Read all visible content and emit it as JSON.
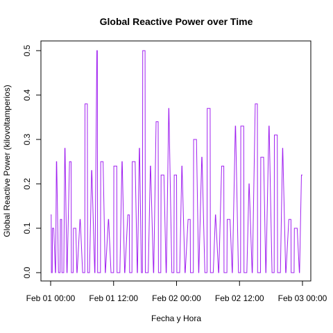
{
  "chart_data": {
    "type": "line",
    "title": "Global Reactive Power over Time",
    "xlabel": "Fecha y Hora",
    "ylabel": "Global Reactive Power (kilovoltamperios)",
    "x_ticks": [
      {
        "label": "Feb 01 00:00",
        "hours": 0
      },
      {
        "label": "Feb 01 12:00",
        "hours": 12
      },
      {
        "label": "Feb 02 00:00",
        "hours": 24
      },
      {
        "label": "Feb 02 12:00",
        "hours": 36
      },
      {
        "label": "Feb 03 00:00",
        "hours": 48
      }
    ],
    "y_ticks": [
      0.0,
      0.1,
      0.2,
      0.3,
      0.4,
      0.5
    ],
    "y_tick_labels": [
      "0.0",
      "0.1",
      "0.2",
      "0.3",
      "0.4",
      "0.5"
    ],
    "xlim_hours": [
      0,
      48
    ],
    "ylim": [
      0,
      0.5
    ],
    "grid": false,
    "legend": "none",
    "line_color": "#a020f0",
    "series": [
      {
        "hours": [
          0.0,
          0.1,
          0.15,
          0.3,
          0.35,
          0.6,
          0.9,
          0.95,
          1.1,
          1.15,
          1.5,
          1.8,
          1.85,
          2.1,
          2.15,
          2.5,
          2.7,
          2.75,
          3.1,
          3.15,
          3.6,
          3.9,
          3.95,
          4.3,
          4.35,
          4.8,
          5.0,
          5.05,
          5.6,
          5.65,
          6.1,
          6.5,
          6.55,
          7.0,
          7.05,
          7.4,
          7.8,
          7.85,
          8.4,
          8.45,
          8.8,
          8.9,
          8.95,
          9.5,
          9.55,
          10.0,
          10.4,
          10.45,
          11.0,
          11.05,
          11.5,
          12.0,
          12.05,
          12.6,
          12.65,
          13.2,
          13.6,
          13.65,
          14.1,
          14.15,
          14.7,
          15.0,
          15.05,
          15.5,
          15.55,
          16.1,
          16.5,
          16.55,
          16.9,
          16.95,
          17.3,
          17.5,
          17.55,
          18.0,
          18.05,
          18.6,
          19.0,
          19.05,
          19.6,
          19.65,
          20.1,
          20.5,
          20.55,
          21.0,
          21.05,
          21.6,
          22.0,
          22.05,
          22.5,
          22.55,
          23.1,
          23.5,
          23.55,
          24.0,
          24.05,
          24.6,
          25.0,
          25.05,
          25.6,
          25.65,
          26.2,
          26.6,
          26.65,
          27.2,
          27.25,
          27.8,
          28.2,
          28.25,
          28.8,
          28.85,
          29.4,
          29.8,
          29.85,
          30.4,
          30.45,
          31.0,
          31.4,
          31.45,
          32.0,
          32.05,
          32.6,
          33.0,
          33.05,
          33.6,
          33.65,
          34.2,
          34.6,
          34.65,
          35.2,
          35.25,
          35.8,
          36.2,
          36.25,
          36.8,
          36.85,
          37.4,
          37.8,
          37.85,
          38.4,
          38.45,
          39.0,
          39.4,
          39.45,
          40.0,
          40.05,
          40.6,
          41.0,
          41.05,
          41.6,
          41.65,
          42.2,
          42.6,
          42.65,
          43.2,
          43.25,
          43.8,
          44.2,
          44.25,
          44.8,
          44.85,
          45.4,
          45.8,
          45.85,
          46.4,
          46.45,
          47.0,
          47.4,
          47.45,
          47.8,
          47.85,
          48.0
        ],
        "values": [
          0.13,
          0.13,
          0.0,
          0.0,
          0.1,
          0.1,
          0.0,
          0.0,
          0.25,
          0.25,
          0.0,
          0.0,
          0.12,
          0.12,
          0.0,
          0.0,
          0.28,
          0.28,
          0.0,
          0.0,
          0.25,
          0.25,
          0.0,
          0.0,
          0.1,
          0.1,
          0.0,
          0.0,
          0.12,
          0.12,
          0.0,
          0.0,
          0.38,
          0.38,
          0.0,
          0.0,
          0.23,
          0.23,
          0.0,
          0.0,
          0.5,
          0.5,
          0.0,
          0.0,
          0.25,
          0.25,
          0.0,
          0.0,
          0.12,
          0.12,
          0.0,
          0.0,
          0.24,
          0.24,
          0.0,
          0.0,
          0.25,
          0.25,
          0.0,
          0.0,
          0.13,
          0.13,
          0.0,
          0.0,
          0.25,
          0.25,
          0.0,
          0.0,
          0.28,
          0.28,
          0.0,
          0.0,
          0.5,
          0.5,
          0.0,
          0.0,
          0.24,
          0.24,
          0.0,
          0.0,
          0.34,
          0.34,
          0.0,
          0.0,
          0.22,
          0.22,
          0.0,
          0.0,
          0.37,
          0.37,
          0.0,
          0.0,
          0.22,
          0.22,
          0.0,
          0.0,
          0.24,
          0.24,
          0.0,
          0.0,
          0.12,
          0.12,
          0.0,
          0.0,
          0.3,
          0.3,
          0.0,
          0.0,
          0.26,
          0.26,
          0.0,
          0.0,
          0.37,
          0.37,
          0.0,
          0.0,
          0.13,
          0.13,
          0.0,
          0.0,
          0.24,
          0.24,
          0.0,
          0.0,
          0.12,
          0.12,
          0.0,
          0.0,
          0.33,
          0.33,
          0.0,
          0.0,
          0.33,
          0.33,
          0.0,
          0.0,
          0.2,
          0.2,
          0.0,
          0.0,
          0.38,
          0.38,
          0.0,
          0.0,
          0.26,
          0.26,
          0.0,
          0.0,
          0.33,
          0.33,
          0.0,
          0.0,
          0.31,
          0.31,
          0.0,
          0.0,
          0.28,
          0.28,
          0.0,
          0.0,
          0.12,
          0.12,
          0.0,
          0.0,
          0.1,
          0.1,
          0.0,
          0.0,
          0.22,
          0.22,
          0.22
        ]
      }
    ]
  }
}
